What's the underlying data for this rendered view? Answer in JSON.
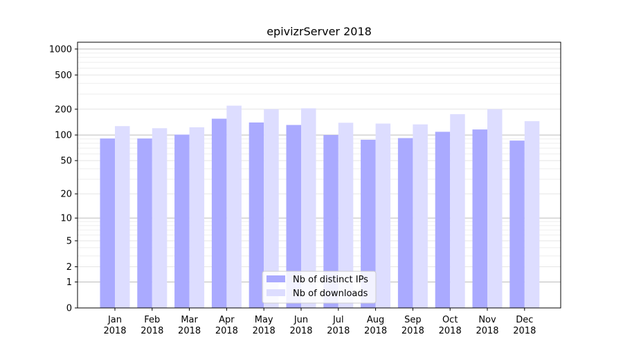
{
  "chart_data": {
    "type": "bar",
    "title": "epivizrServer 2018",
    "xlabel": "",
    "ylabel": "",
    "yscale": "log1p",
    "ylim": [
      0,
      1200
    ],
    "yticks": [
      0,
      1,
      2,
      5,
      10,
      20,
      50,
      100,
      200,
      500,
      1000
    ],
    "ytick_labels": [
      "0",
      "1",
      "2",
      "5",
      "10",
      "20",
      "50",
      "100",
      "200",
      "500",
      "1000"
    ],
    "grid": true,
    "legend_position": "bottom-center",
    "categories": [
      [
        "Jan",
        "2018"
      ],
      [
        "Feb",
        "2018"
      ],
      [
        "Mar",
        "2018"
      ],
      [
        "Apr",
        "2018"
      ],
      [
        "May",
        "2018"
      ],
      [
        "Jun",
        "2018"
      ],
      [
        "Jul",
        "2018"
      ],
      [
        "Aug",
        "2018"
      ],
      [
        "Sep",
        "2018"
      ],
      [
        "Oct",
        "2018"
      ],
      [
        "Nov",
        "2018"
      ],
      [
        "Dec",
        "2018"
      ]
    ],
    "series": [
      {
        "name": "Nb of distinct IPs",
        "color": "#aaaaff",
        "values": [
          91,
          91,
          101,
          155,
          140,
          131,
          100,
          88,
          92,
          109,
          116,
          86
        ]
      },
      {
        "name": "Nb of downloads",
        "color": "#ddddff",
        "values": [
          127,
          120,
          123,
          220,
          200,
          205,
          139,
          136,
          133,
          175,
          200,
          145
        ]
      }
    ]
  }
}
